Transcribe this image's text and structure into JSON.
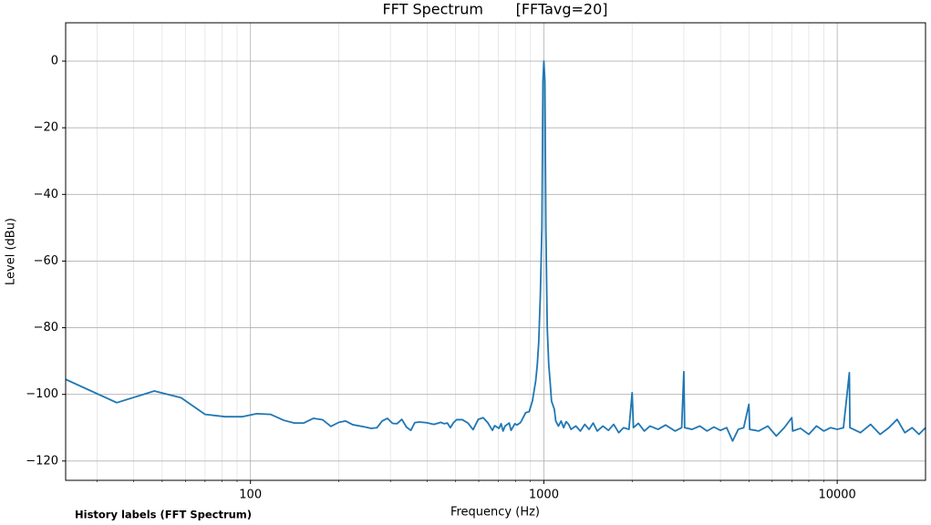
{
  "chart_data": {
    "type": "line",
    "title": "FFT Spectrum       [FFTavg=20]",
    "xlabel": "Frequency (Hz)",
    "ylabel": "Level (dBu)",
    "footer": "History labels (FFT Spectrum)",
    "xscale": "log",
    "grid": true,
    "minor_grid": true,
    "xlim": [
      23.44,
      20000
    ],
    "xticks": [
      100,
      1000,
      10000
    ],
    "xminorticks": [
      30,
      40,
      50,
      60,
      70,
      80,
      90,
      200,
      300,
      400,
      500,
      600,
      700,
      800,
      900,
      2000,
      3000,
      4000,
      5000,
      6000,
      7000,
      8000,
      9000
    ],
    "ylim": [
      -125.8,
      11.5
    ],
    "yticks": [
      0,
      -20,
      -40,
      -60,
      -80,
      -100,
      -120
    ],
    "x": [
      23.44,
      35,
      47,
      58,
      70,
      82,
      94,
      105,
      117,
      130,
      141,
      152,
      164,
      176,
      188,
      200,
      211,
      223,
      246,
      258,
      270,
      281,
      293,
      305,
      316,
      328,
      340,
      352,
      363,
      375,
      398,
      422,
      445,
      457,
      469,
      480,
      492,
      504,
      527,
      551,
      574,
      586,
      598,
      621,
      644,
      668,
      680,
      703,
      715,
      726,
      738,
      762,
      773,
      797,
      809,
      832,
      844,
      867,
      891,
      914,
      938,
      950,
      961,
      973,
      985,
      993,
      1000,
      1008,
      1016,
      1027,
      1039,
      1050,
      1062,
      1086,
      1098,
      1121,
      1145,
      1168,
      1191,
      1215,
      1238,
      1285,
      1332,
      1379,
      1426,
      1473,
      1520,
      1590,
      1660,
      1730,
      1800,
      1870,
      1950,
      2000,
      2020,
      2100,
      2200,
      2300,
      2450,
      2600,
      2800,
      2950,
      3000,
      3020,
      3200,
      3400,
      3600,
      3800,
      4000,
      4200,
      4400,
      4600,
      4800,
      5000,
      5030,
      5400,
      5800,
      6200,
      6600,
      7000,
      7050,
      7500,
      8000,
      8500,
      9000,
      9500,
      10000,
      10500,
      11000,
      11050,
      12000,
      13000,
      14000,
      15000,
      16000,
      17000,
      18000,
      19000,
      20000
    ],
    "series": [
      {
        "name": "FFT Spectrum",
        "color": "#1f77b4",
        "values": [
          -95.5,
          -102.5,
          -99,
          -101,
          -106,
          -106.7,
          -106.7,
          -105.8,
          -106,
          -107.8,
          -108.6,
          -108.6,
          -107.2,
          -107.6,
          -109.6,
          -108.4,
          -108,
          -109.1,
          -109.8,
          -110.2,
          -110,
          -108,
          -107.2,
          -108.7,
          -108.8,
          -107.5,
          -109.8,
          -110.8,
          -108.5,
          -108.3,
          -108.5,
          -109,
          -108.4,
          -108.8,
          -108.6,
          -110,
          -108.5,
          -107.6,
          -107.6,
          -108.6,
          -110.6,
          -109,
          -107.5,
          -107,
          -108.5,
          -110.8,
          -109.4,
          -110.2,
          -108.8,
          -111,
          -109.5,
          -108.6,
          -110.8,
          -108.8,
          -109.2,
          -108.5,
          -107.5,
          -105.5,
          -105.2,
          -102,
          -96,
          -91,
          -84,
          -70,
          -50,
          -6,
          0,
          -6,
          -50,
          -80,
          -91,
          -96,
          -102,
          -104.5,
          -108,
          -109.5,
          -108,
          -110,
          -108.2,
          -109,
          -110.5,
          -109.5,
          -111,
          -109,
          -110.5,
          -108.6,
          -111,
          -109.5,
          -110.8,
          -109,
          -111.5,
          -110,
          -110.5,
          -99.5,
          -110,
          -108.7,
          -111,
          -109.5,
          -110.5,
          -109.2,
          -111,
          -110,
          -93.2,
          -110,
          -110.5,
          -109.5,
          -111,
          -109.8,
          -110.8,
          -110,
          -114,
          -110.5,
          -110,
          -103,
          -110.5,
          -111,
          -109.5,
          -112.5,
          -110,
          -107,
          -111,
          -110.2,
          -112,
          -109.5,
          -111,
          -110,
          -110.5,
          -110,
          -93.5,
          -110,
          -111.5,
          -109,
          -112,
          -110,
          -107.5,
          -111.5,
          -110,
          -112,
          -110
        ]
      }
    ]
  }
}
